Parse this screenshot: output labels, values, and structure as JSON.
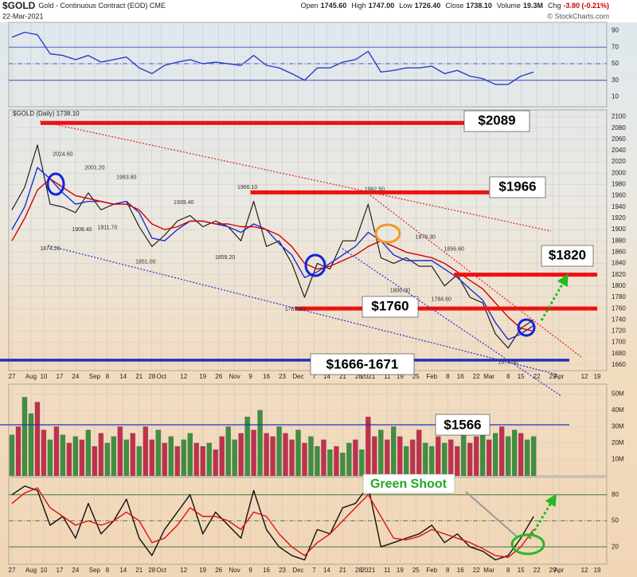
{
  "header": {
    "symbol": "$GOLD",
    "title": "Gold - Continuous Contract (EOD) CME",
    "date": "22-Mar-2021",
    "quote": [
      {
        "label": "Open",
        "value": "1745.60"
      },
      {
        "label": "High",
        "value": "1747.00"
      },
      {
        "label": "Low",
        "value": "1726.40"
      },
      {
        "label": "Close",
        "value": "1738.10"
      },
      {
        "label": "Volume",
        "value": "19.3M"
      },
      {
        "label": "Chg",
        "value": "-3.80 (-0.21%)"
      }
    ],
    "credit": "© StockCharts.com"
  },
  "chart_data": [
    {
      "type": "line",
      "x": [
        0,
        4,
        8,
        12,
        16,
        20,
        24,
        28,
        32,
        36,
        40,
        44,
        48,
        52,
        56,
        60,
        64,
        68,
        72,
        76,
        80,
        84,
        88,
        92,
        96,
        100,
        104,
        108,
        112,
        116,
        120,
        124,
        128,
        132,
        136,
        140,
        144,
        148,
        152,
        156,
        160,
        164
      ],
      "series": [
        {
          "color": "#2a3ec8",
          "values": [
            82,
            88,
            85,
            62,
            60,
            55,
            60,
            52,
            55,
            58,
            45,
            38,
            48,
            52,
            55,
            50,
            52,
            50,
            48,
            60,
            48,
            45,
            38,
            30,
            45,
            45,
            52,
            55,
            65,
            40,
            42,
            45,
            45,
            47,
            38,
            42,
            35,
            32,
            25,
            25,
            35,
            40
          ]
        }
      ],
      "ylim": [
        -2,
        100
      ],
      "yticks": [
        10,
        30,
        50,
        70,
        90
      ]
    },
    {
      "type": "line",
      "legend": "$GOLD (Daily) 1738.10",
      "x": [
        0,
        4,
        8,
        12,
        16,
        20,
        24,
        28,
        32,
        36,
        40,
        44,
        48,
        52,
        56,
        60,
        64,
        68,
        72,
        76,
        80,
        84,
        88,
        92,
        96,
        100,
        104,
        108,
        112,
        116,
        120,
        124,
        128,
        132,
        136,
        140,
        144,
        148,
        152,
        156,
        160,
        164
      ],
      "series": [
        {
          "color": "#111111",
          "values": [
            1935,
            1975,
            2050,
            1945,
            1940,
            1930,
            1965,
            1935,
            1945,
            1950,
            1905,
            1870,
            1890,
            1915,
            1925,
            1905,
            1915,
            1905,
            1880,
            1950,
            1870,
            1880,
            1840,
            1780,
            1840,
            1830,
            1880,
            1880,
            1945,
            1850,
            1840,
            1850,
            1835,
            1835,
            1800,
            1820,
            1780,
            1770,
            1715,
            1690,
            1725,
            1740
          ]
        },
        {
          "color": "#1a2fd0",
          "values": [
            1900,
            1940,
            2010,
            1990,
            1965,
            1945,
            1950,
            1950,
            1945,
            1950,
            1930,
            1885,
            1880,
            1900,
            1915,
            1915,
            1910,
            1905,
            1895,
            1910,
            1900,
            1875,
            1855,
            1815,
            1825,
            1840,
            1855,
            1870,
            1895,
            1880,
            1855,
            1845,
            1845,
            1845,
            1830,
            1815,
            1795,
            1775,
            1735,
            1705,
            1715,
            1730
          ]
        },
        {
          "color": "#d40000",
          "values": [
            1880,
            1920,
            1970,
            1990,
            1975,
            1960,
            1955,
            1950,
            1945,
            1945,
            1935,
            1910,
            1900,
            1905,
            1915,
            1915,
            1910,
            1910,
            1905,
            1905,
            1900,
            1890,
            1870,
            1840,
            1830,
            1835,
            1845,
            1855,
            1870,
            1880,
            1870,
            1860,
            1855,
            1850,
            1840,
            1825,
            1810,
            1795,
            1770,
            1745,
            1725,
            1720
          ]
        }
      ],
      "price_labels": [
        {
          "x": 12,
          "value": 1874.2,
          "label": "1874.20"
        },
        {
          "x": 16,
          "value": 2024.6,
          "label": "2024.60"
        },
        {
          "x": 22,
          "value": 1908.4,
          "label": "1908.40"
        },
        {
          "x": 26,
          "value": 2001.2,
          "label": "2001.20"
        },
        {
          "x": 30,
          "value": 1911.7,
          "label": "1911.70"
        },
        {
          "x": 36,
          "value": 1983.8,
          "label": "1983.80"
        },
        {
          "x": 42,
          "value": 1851,
          "label": "1851.00"
        },
        {
          "x": 54,
          "value": 1939.4,
          "label": "1939.40"
        },
        {
          "x": 67,
          "value": 1859.2,
          "label": "1859.20"
        },
        {
          "x": 74,
          "value": 1966.1,
          "label": "1966.10"
        },
        {
          "x": 89,
          "value": 1767.2,
          "label": "1767.20"
        },
        {
          "x": 114,
          "value": 1962.5,
          "label": "1962.50"
        },
        {
          "x": 122,
          "value": 1800.3,
          "label": "1800.30"
        },
        {
          "x": 130,
          "value": 1878.3,
          "label": "1878.30"
        },
        {
          "x": 135,
          "value": 1784.6,
          "label": "1784.60"
        },
        {
          "x": 139,
          "value": 1856.6,
          "label": "1856.60"
        },
        {
          "x": 156,
          "value": 1673.3,
          "label": "1673.30"
        }
      ],
      "levels": [
        {
          "value": 2089,
          "label": "$2089",
          "x": [
            9,
            162
          ]
        },
        {
          "value": 1966,
          "label": "$1966",
          "x": [
            75,
            150
          ]
        },
        {
          "value": 1820,
          "label": "$1820",
          "x": [
            139,
            184
          ]
        },
        {
          "value": 1760,
          "label": "$1760",
          "x": [
            89,
            184
          ]
        }
      ],
      "support": {
        "values": [
          1666,
          1671
        ],
        "label": "$1666-1671"
      },
      "xlim": [
        -1,
        187
      ],
      "xticks": [
        {
          "value": 0,
          "label": "27"
        },
        {
          "value": 6,
          "label": "Aug"
        },
        {
          "value": 10,
          "label": "10"
        },
        {
          "value": 15,
          "label": "17"
        },
        {
          "value": 20,
          "label": "24"
        },
        {
          "value": 26,
          "label": "Sep"
        },
        {
          "value": 30,
          "label": "8"
        },
        {
          "value": 35,
          "label": "14"
        },
        {
          "value": 40,
          "label": "21"
        },
        {
          "value": 44,
          "label": "28"
        },
        {
          "value": 47,
          "label": "Oct"
        },
        {
          "value": 54,
          "label": "12"
        },
        {
          "value": 60,
          "label": "19"
        },
        {
          "value": 65,
          "label": "26"
        },
        {
          "value": 70,
          "label": "Nov"
        },
        {
          "value": 75,
          "label": "9"
        },
        {
          "value": 80,
          "label": "16"
        },
        {
          "value": 85,
          "label": "23"
        },
        {
          "value": 90,
          "label": "Dec"
        },
        {
          "value": 95,
          "label": "7"
        },
        {
          "value": 99,
          "label": "14"
        },
        {
          "value": 104,
          "label": "21"
        },
        {
          "value": 109,
          "label": "28"
        },
        {
          "value": 112,
          "label": "2021"
        },
        {
          "value": 118,
          "label": "11"
        },
        {
          "value": 122,
          "label": "19"
        },
        {
          "value": 127,
          "label": "25"
        },
        {
          "value": 132,
          "label": "Feb"
        },
        {
          "value": 137,
          "label": "8"
        },
        {
          "value": 141,
          "label": "16"
        },
        {
          "value": 146,
          "label": "22"
        },
        {
          "value": 150,
          "label": "Mar"
        },
        {
          "value": 156,
          "label": "8"
        },
        {
          "value": 160,
          "label": "15"
        },
        {
          "value": 165,
          "label": "22"
        },
        {
          "value": 170,
          "label": "29"
        },
        {
          "value": 172,
          "label": "Apr"
        },
        {
          "value": 180,
          "label": "12"
        },
        {
          "value": 184,
          "label": "19"
        }
      ],
      "ylim": [
        1650,
        2112
      ],
      "yticks": [
        1660,
        1680,
        1700,
        1720,
        1740,
        1760,
        1780,
        1800,
        1820,
        1840,
        1860,
        1880,
        1900,
        1920,
        1940,
        1960,
        1980,
        2000,
        2020,
        2040,
        2060,
        2080,
        2100
      ]
    },
    {
      "type": "bar",
      "label": "$1566",
      "x": [
        0,
        2,
        4,
        6,
        8,
        10,
        12,
        14,
        16,
        18,
        20,
        22,
        24,
        26,
        28,
        30,
        32,
        34,
        36,
        38,
        40,
        42,
        44,
        46,
        48,
        50,
        52,
        54,
        56,
        58,
        60,
        62,
        64,
        66,
        68,
        70,
        72,
        74,
        76,
        78,
        80,
        82,
        84,
        86,
        88,
        90,
        92,
        94,
        96,
        98,
        100,
        102,
        104,
        106,
        108,
        110,
        112,
        114,
        116,
        118,
        120,
        122,
        124,
        126,
        128,
        130,
        132,
        134,
        136,
        138,
        140,
        142,
        144,
        146,
        148,
        150,
        152,
        154,
        156,
        158,
        160,
        162,
        164
      ],
      "values": [
        25,
        30,
        48,
        38,
        45,
        28,
        22,
        30,
        25,
        20,
        24,
        22,
        28,
        18,
        26,
        20,
        24,
        30,
        22,
        26,
        18,
        30,
        22,
        28,
        20,
        24,
        18,
        22,
        26,
        20,
        18,
        20,
        16,
        24,
        30,
        22,
        26,
        36,
        28,
        40,
        26,
        24,
        30,
        26,
        22,
        28,
        20,
        24,
        18,
        22,
        16,
        18,
        14,
        20,
        22,
        16,
        36,
        24,
        28,
        22,
        30,
        24,
        18,
        22,
        28,
        20,
        18,
        24,
        20,
        22,
        18,
        26,
        20,
        24,
        28,
        22,
        26,
        30,
        24,
        28,
        26,
        22,
        24
      ],
      "up": [
        true,
        false,
        true,
        true,
        false,
        false,
        true,
        false,
        true,
        false,
        true,
        false,
        true,
        false,
        false,
        true,
        true,
        false,
        true,
        false,
        true,
        false,
        false,
        true,
        false,
        true,
        false,
        true,
        true,
        false,
        false,
        true,
        false,
        false,
        true,
        true,
        false,
        true,
        false,
        true,
        false,
        false,
        true,
        false,
        false,
        true,
        false,
        true,
        true,
        false,
        true,
        false,
        true,
        true,
        false,
        true,
        false,
        false,
        true,
        false,
        true,
        false,
        true,
        false,
        false,
        true,
        true,
        false,
        true,
        false,
        false,
        true,
        false,
        false,
        true,
        false,
        true,
        false,
        true,
        true,
        false,
        true,
        true
      ],
      "colors": {
        "up": "#3f8f3f",
        "down": "#c2304c"
      },
      "ylim": [
        0,
        56
      ],
      "yticks": [
        {
          "value": 10,
          "label": "10M"
        },
        {
          "value": 20,
          "label": "20M"
        },
        {
          "value": 30,
          "label": "30M"
        },
        {
          "value": 40,
          "label": "40M"
        },
        {
          "value": 50,
          "label": "50M"
        }
      ]
    },
    {
      "type": "line",
      "annotation": "Green Shoot",
      "x": [
        0,
        4,
        8,
        12,
        16,
        20,
        24,
        28,
        32,
        36,
        40,
        44,
        48,
        52,
        56,
        60,
        64,
        68,
        72,
        76,
        80,
        84,
        88,
        92,
        96,
        100,
        104,
        108,
        112,
        116,
        120,
        124,
        128,
        132,
        136,
        140,
        144,
        148,
        152,
        156,
        160,
        164
      ],
      "series": [
        {
          "color": "#111111",
          "values": [
            80,
            90,
            85,
            45,
            55,
            30,
            70,
            35,
            50,
            75,
            30,
            10,
            40,
            60,
            80,
            35,
            60,
            45,
            30,
            85,
            40,
            20,
            10,
            5,
            40,
            35,
            65,
            70,
            90,
            20,
            25,
            30,
            35,
            45,
            25,
            35,
            20,
            15,
            5,
            10,
            30,
            55
          ]
        },
        {
          "color": "#e01010",
          "values": [
            70,
            82,
            88,
            65,
            55,
            45,
            50,
            45,
            50,
            60,
            50,
            25,
            30,
            45,
            65,
            55,
            55,
            50,
            40,
            60,
            55,
            35,
            20,
            10,
            25,
            35,
            50,
            65,
            80,
            55,
            30,
            28,
            32,
            40,
            35,
            30,
            25,
            18,
            10,
            8,
            20,
            40
          ]
        }
      ],
      "ylim": [
        0,
        100
      ],
      "yticks": [
        20,
        50,
        80
      ]
    }
  ]
}
